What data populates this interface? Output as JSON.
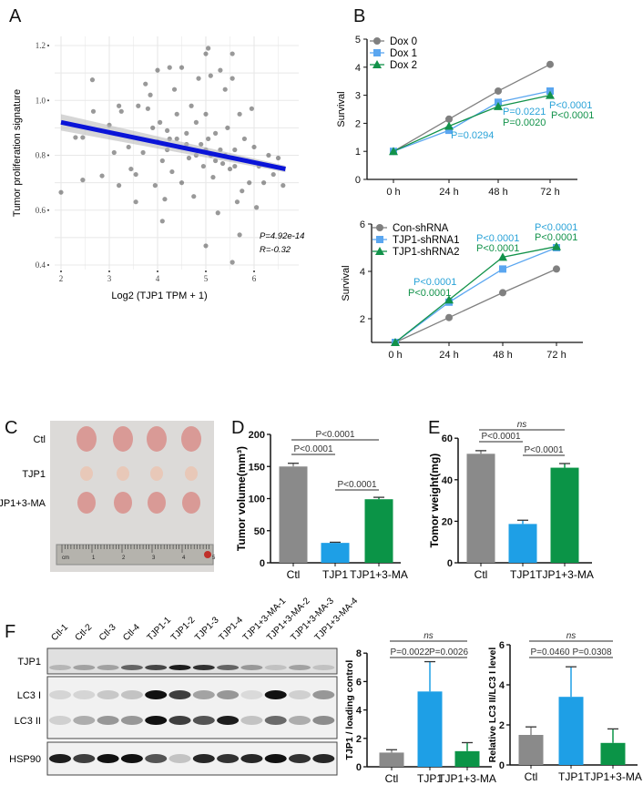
{
  "panels": {
    "a": "A",
    "b": "B",
    "c": "C",
    "d": "D",
    "e": "E",
    "f": "F"
  },
  "chart_data": [
    {
      "id": "A",
      "type": "scatter",
      "xlabel": "Log2 (TJP1 TPM + 1)",
      "ylabel": "Tumor proliferation signature",
      "xlim": [
        2,
        6.7
      ],
      "ylim": [
        0.4,
        1.2
      ],
      "xticks": [
        "2",
        "3",
        "4",
        "5",
        "6"
      ],
      "yticks": [
        "0.4",
        "0.6",
        "0.8",
        "1.0",
        "1.2"
      ],
      "grid": true,
      "point_color": "#555555",
      "fit_color": "#0a14d8",
      "fit_line": [
        [
          2.0,
          0.92
        ],
        [
          6.65,
          0.75
        ]
      ],
      "annotation_p": "P=4.92e-14",
      "annotation_r": "R=-0.32",
      "points": [
        [
          2.0,
          0.665
        ],
        [
          2.3,
          0.865
        ],
        [
          2.45,
          0.865
        ],
        [
          2.45,
          0.71
        ],
        [
          2.65,
          1.075
        ],
        [
          2.67,
          0.96
        ],
        [
          2.85,
          0.725
        ],
        [
          3.0,
          0.91
        ],
        [
          3.1,
          0.81
        ],
        [
          3.2,
          0.98
        ],
        [
          3.2,
          0.69
        ],
        [
          3.25,
          0.96
        ],
        [
          3.4,
          0.83
        ],
        [
          3.45,
          0.75
        ],
        [
          3.55,
          0.63
        ],
        [
          3.55,
          0.73
        ],
        [
          3.6,
          0.98
        ],
        [
          3.7,
          0.81
        ],
        [
          3.75,
          1.06
        ],
        [
          3.8,
          0.97
        ],
        [
          3.85,
          1.02
        ],
        [
          3.9,
          0.9
        ],
        [
          3.95,
          0.69
        ],
        [
          4.0,
          1.11
        ],
        [
          4.0,
          0.85
        ],
        [
          4.05,
          0.92
        ],
        [
          4.1,
          0.78
        ],
        [
          4.1,
          0.56
        ],
        [
          4.15,
          0.64
        ],
        [
          4.2,
          0.89
        ],
        [
          4.25,
          1.12
        ],
        [
          4.25,
          0.86
        ],
        [
          4.3,
          0.74
        ],
        [
          4.35,
          1.04
        ],
        [
          4.4,
          0.95
        ],
        [
          4.45,
          0.83
        ],
        [
          4.5,
          1.12
        ],
        [
          4.5,
          0.7
        ],
        [
          4.6,
          0.88
        ],
        [
          4.65,
          0.79
        ],
        [
          4.7,
          0.98
        ],
        [
          4.75,
          0.65
        ],
        [
          4.8,
          0.92
        ],
        [
          4.85,
          1.08
        ],
        [
          4.9,
          0.84
        ],
        [
          4.95,
          0.76
        ],
        [
          5.0,
          1.17
        ],
        [
          5.0,
          0.95
        ],
        [
          5.0,
          0.47
        ],
        [
          5.05,
          0.86
        ],
        [
          5.05,
          1.19
        ],
        [
          5.1,
          0.8
        ],
        [
          5.1,
          1.09
        ],
        [
          5.15,
          0.72
        ],
        [
          5.2,
          0.88
        ],
        [
          5.25,
          0.59
        ],
        [
          5.3,
          1.11
        ],
        [
          5.3,
          0.82
        ],
        [
          5.35,
          0.77
        ],
        [
          5.4,
          1.04
        ],
        [
          5.45,
          0.9
        ],
        [
          5.5,
          0.75
        ],
        [
          5.55,
          1.17
        ],
        [
          5.55,
          1.08
        ],
        [
          5.55,
          0.41
        ],
        [
          5.6,
          0.82
        ],
        [
          5.65,
          0.63
        ],
        [
          5.7,
          0.95
        ],
        [
          5.7,
          0.51
        ],
        [
          5.75,
          0.67
        ],
        [
          5.8,
          0.86
        ],
        [
          5.85,
          0.78
        ],
        [
          5.9,
          0.7
        ],
        [
          5.95,
          0.97
        ],
        [
          6.0,
          0.83
        ],
        [
          6.05,
          0.61
        ],
        [
          6.1,
          0.76
        ],
        [
          6.2,
          0.7
        ],
        [
          6.3,
          0.8
        ],
        [
          6.4,
          0.73
        ],
        [
          6.5,
          0.79
        ],
        [
          6.6,
          0.69
        ],
        [
          4.6,
          0.84
        ],
        [
          4.8,
          0.8
        ],
        [
          5.0,
          0.82
        ],
        [
          5.2,
          0.78
        ],
        [
          4.4,
          0.86
        ],
        [
          5.4,
          0.8
        ],
        [
          4.2,
          0.82
        ],
        [
          5.6,
          0.76
        ]
      ]
    },
    {
      "id": "B-top",
      "type": "line",
      "ylabel": "Survival",
      "categories": [
        "0 h",
        "24 h",
        "48 h",
        "72 h"
      ],
      "ylim": [
        0,
        5
      ],
      "yticks": [
        0,
        1,
        2,
        3,
        4,
        5
      ],
      "series": [
        {
          "name": "Dox 0",
          "marker": "circle",
          "color": "#808080",
          "values": [
            1,
            2.15,
            3.15,
            4.1
          ]
        },
        {
          "name": "Dox 1",
          "marker": "square",
          "color": "#5aa6f0",
          "values": [
            1,
            1.75,
            2.75,
            3.15
          ]
        },
        {
          "name": "Dox 2",
          "marker": "triangle",
          "color": "#12924a",
          "values": [
            1,
            1.9,
            2.6,
            3.0
          ]
        }
      ],
      "annotations": [
        {
          "text": "P=0.0294",
          "color": "#2aa3d8"
        },
        {
          "text": "P=0.0221",
          "color": "#2aa3d8"
        },
        {
          "text": "P=0.0020",
          "color": "#12924a"
        },
        {
          "text": "P<0.0001",
          "color": "#2aa3d8"
        },
        {
          "text": "P<0.0001",
          "color": "#12924a"
        }
      ]
    },
    {
      "id": "B-bottom",
      "type": "line",
      "ylabel": "Survival",
      "categories": [
        "0 h",
        "24 h",
        "48 h",
        "72 h"
      ],
      "ylim": [
        1,
        6
      ],
      "yticks": [
        2,
        4,
        6
      ],
      "series": [
        {
          "name": "Con-shRNA",
          "marker": "circle",
          "color": "#808080",
          "values": [
            1,
            2.05,
            3.1,
            4.1
          ]
        },
        {
          "name": "TJP1-shRNA1",
          "marker": "square",
          "color": "#5aa6f0",
          "values": [
            1,
            2.7,
            4.1,
            5.0
          ]
        },
        {
          "name": "TJP1-shRNA2",
          "marker": "triangle",
          "color": "#12924a",
          "values": [
            1,
            2.8,
            4.6,
            5.05
          ]
        }
      ],
      "annotations": [
        {
          "text": "P<0.0001",
          "color": "#2aa3d8"
        },
        {
          "text": "P<0.0001",
          "color": "#12924a"
        },
        {
          "text": "P<0.0001",
          "color": "#2aa3d8"
        },
        {
          "text": "P<0.0001",
          "color": "#12924a"
        },
        {
          "text": "P<0.0001",
          "color": "#2aa3d8"
        },
        {
          "text": "P<0.0001",
          "color": "#12924a"
        }
      ]
    },
    {
      "id": "D",
      "type": "bar",
      "ylabel": "Tumor volume(mm³)",
      "categories": [
        "Ctl",
        "TJP1",
        "TJP1+3-MA"
      ],
      "values": [
        150,
        31,
        99
      ],
      "errors": [
        5,
        1,
        3
      ],
      "colors": [
        "#8a8a8a",
        "#1e9fe6",
        "#0b9447"
      ],
      "ylim": [
        0,
        200
      ],
      "yticks": [
        0,
        50,
        100,
        150,
        200
      ],
      "comparisons": [
        {
          "pair": [
            0,
            2
          ],
          "text": "P<0.0001"
        },
        {
          "pair": [
            0,
            1
          ],
          "text": "P<0.0001"
        },
        {
          "pair": [
            1,
            2
          ],
          "text": "P<0.0001"
        }
      ]
    },
    {
      "id": "E",
      "type": "bar",
      "ylabel": "Tomor weight(mg)",
      "categories": [
        "Ctl",
        "TJP1",
        "TJP1+3-MA"
      ],
      "values": [
        52.5,
        18.7,
        45.8
      ],
      "errors": [
        1.5,
        1.8,
        2
      ],
      "colors": [
        "#8a8a8a",
        "#1e9fe6",
        "#0b9447"
      ],
      "ylim": [
        0,
        60
      ],
      "yticks": [
        0,
        20,
        40,
        60
      ],
      "comparisons": [
        {
          "pair": [
            0,
            2
          ],
          "text": "ns"
        },
        {
          "pair": [
            0,
            1
          ],
          "text": "P<0.0001"
        },
        {
          "pair": [
            1,
            2
          ],
          "text": "P<0.0001"
        }
      ]
    },
    {
      "id": "F-1",
      "type": "bar",
      "ylabel": "TJP1 / loading control",
      "categories": [
        "Ctl",
        "TJP1",
        "TJP1+3-MA"
      ],
      "values": [
        1.0,
        5.3,
        1.1
      ],
      "errors": [
        0.2,
        2.1,
        0.6
      ],
      "colors": [
        "#8a8a8a",
        "#1e9fe6",
        "#0b9447"
      ],
      "ylim": [
        0,
        8
      ],
      "yticks": [
        0,
        2,
        4,
        6,
        8
      ],
      "comparisons": [
        {
          "pair": [
            0,
            2
          ],
          "text": "ns"
        },
        {
          "pair": [
            0,
            1
          ],
          "text": "P=0.0022"
        },
        {
          "pair": [
            1,
            2
          ],
          "text": "P=0.0026"
        }
      ]
    },
    {
      "id": "F-2",
      "type": "bar",
      "ylabel": "Relative LC3 II/LC3 I level",
      "categories": [
        "Ctl",
        "TJP1",
        "TJP1+3-MA"
      ],
      "values": [
        1.5,
        3.4,
        1.1
      ],
      "errors": [
        0.4,
        1.5,
        0.7
      ],
      "colors": [
        "#8a8a8a",
        "#1e9fe6",
        "#0b9447"
      ],
      "ylim": [
        0,
        6
      ],
      "yticks": [
        0,
        2,
        4,
        6
      ],
      "comparisons": [
        {
          "pair": [
            0,
            2
          ],
          "text": "ns"
        },
        {
          "pair": [
            0,
            1
          ],
          "text": "P=0.0460"
        },
        {
          "pair": [
            1,
            2
          ],
          "text": "P=0.0308"
        }
      ]
    }
  ],
  "photo": {
    "rows": [
      "Ctl",
      "TJP1",
      "TJP1+3-MA"
    ],
    "ruler_labels": [
      "cm",
      "1",
      "2",
      "3",
      "4",
      "5"
    ]
  },
  "blot": {
    "lanes": [
      "Ctl-1",
      "Ctl-2",
      "Ctl-3",
      "Ctl-4",
      "TJP1-1",
      "TJP1-2",
      "TJP1-3",
      "TJP1-4",
      "TJP1+3-MA-1",
      "TJP1+3-MA-2",
      "TJP1+3-MA-3",
      "TJP1+3-MA-4"
    ],
    "rows": [
      "TJP1",
      "LC3 I",
      "LC3 II",
      "HSP90"
    ],
    "intensity": {
      "TJP1": [
        0.2,
        0.3,
        0.3,
        0.6,
        0.75,
        0.95,
        0.85,
        0.6,
        0.35,
        0.15,
        0.3,
        0.15
      ],
      "LC3 I": [
        0.12,
        0.12,
        0.18,
        0.2,
        1.0,
        0.8,
        0.35,
        0.4,
        0.1,
        1.0,
        0.15,
        0.4
      ],
      "LC3 II": [
        0.15,
        0.3,
        0.4,
        0.4,
        1.0,
        0.8,
        0.7,
        0.95,
        0.2,
        0.6,
        0.3,
        0.45
      ],
      "HSP90": [
        0.95,
        0.8,
        1.0,
        1.0,
        0.7,
        0.2,
        0.9,
        0.85,
        0.9,
        1.0,
        0.85,
        0.9
      ]
    }
  }
}
